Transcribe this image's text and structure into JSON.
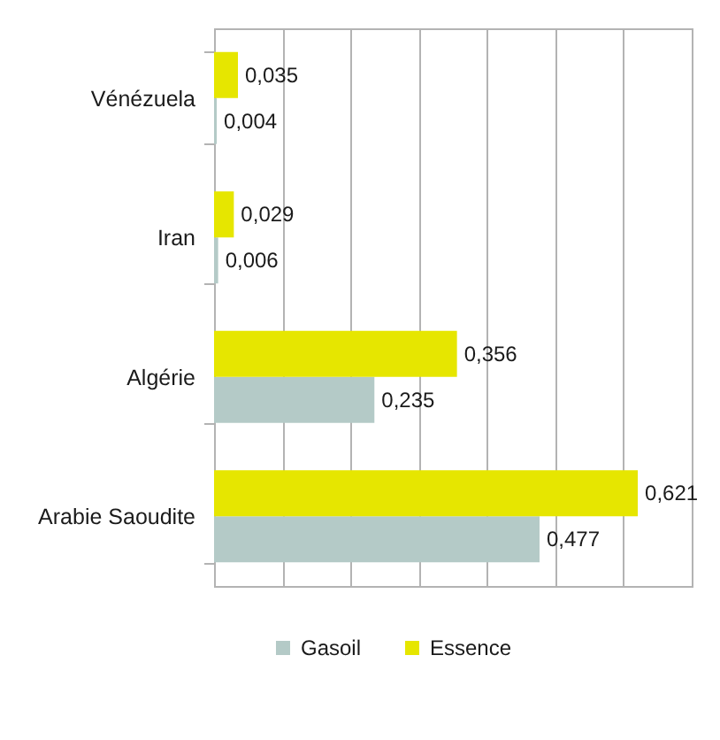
{
  "chart_data": {
    "type": "bar",
    "orientation": "horizontal",
    "categories": [
      "Vénézuela",
      "Iran",
      "Algérie",
      "Arabie Saoudite"
    ],
    "series": [
      {
        "name": "Gasoil",
        "color": "#b4cac7",
        "values": [
          0.004,
          0.006,
          0.235,
          0.477
        ],
        "value_labels": [
          "0,004",
          "0,006",
          "0,235",
          "0,477"
        ]
      },
      {
        "name": "Essence",
        "color": "#e6e600",
        "values": [
          0.035,
          0.029,
          0.356,
          0.621
        ],
        "value_labels": [
          "0,035",
          "0,029",
          "0,356",
          "0,621"
        ]
      }
    ],
    "xlim": [
      0,
      0.7
    ],
    "xticks": [
      {
        "value": 0,
        "label": null
      },
      {
        "value": 0.1,
        "label": null
      },
      {
        "value": 0.2,
        "label": null
      },
      {
        "value": 0.3,
        "label": null
      },
      {
        "value": 0.4,
        "label": null
      },
      {
        "value": 0.5,
        "label": null
      },
      {
        "value": 0.6,
        "label": null
      },
      {
        "value": 0.7,
        "label": null
      }
    ],
    "tick_labels": "y",
    "grid": "x",
    "legend": "bottom"
  }
}
